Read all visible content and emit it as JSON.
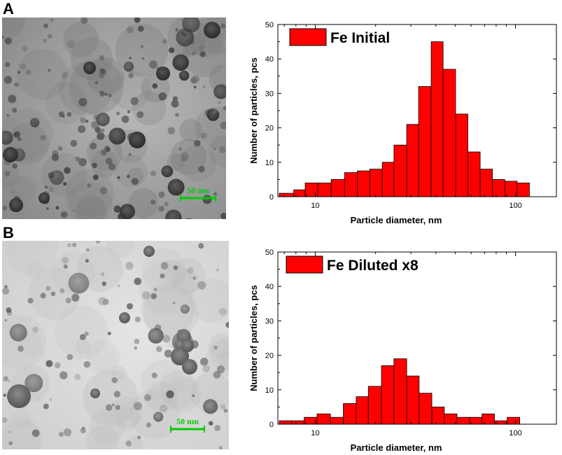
{
  "panels": [
    {
      "letter": "A",
      "scale_bar_text": "50 nm",
      "micrograph_style": "dark",
      "chart_data": {
        "type": "bar",
        "x_scale": "log",
        "xlim": [
          6.5,
          160
        ],
        "ylim": [
          0,
          50
        ],
        "yticks": [
          0,
          10,
          20,
          30,
          40,
          50
        ],
        "xticks": [
          10,
          100
        ],
        "xlabel": "Particle diameter, nm",
        "ylabel": "Number of particles, pcs",
        "bar_color": "#ff0000",
        "legend": "Fe Initial",
        "legend_position": "top-left",
        "bins": [
          {
            "left": 6.6,
            "right": 7.8,
            "value": 1
          },
          {
            "left": 7.8,
            "right": 8.9,
            "value": 2
          },
          {
            "left": 8.9,
            "right": 10.3,
            "value": 4
          },
          {
            "left": 10.3,
            "right": 12.0,
            "value": 4
          },
          {
            "left": 12.0,
            "right": 14.0,
            "value": 5
          },
          {
            "left": 14.0,
            "right": 16.2,
            "value": 7
          },
          {
            "left": 16.2,
            "right": 18.7,
            "value": 7.5
          },
          {
            "left": 18.7,
            "right": 21.6,
            "value": 8
          },
          {
            "left": 21.6,
            "right": 24.7,
            "value": 10
          },
          {
            "left": 24.7,
            "right": 28.6,
            "value": 15
          },
          {
            "left": 28.6,
            "right": 32.8,
            "value": 21
          },
          {
            "left": 32.8,
            "right": 37.9,
            "value": 32
          },
          {
            "left": 37.9,
            "right": 43.5,
            "value": 45
          },
          {
            "left": 43.5,
            "right": 50.2,
            "value": 37
          },
          {
            "left": 50.2,
            "right": 57.8,
            "value": 24
          },
          {
            "left": 57.8,
            "right": 66.6,
            "value": 13
          },
          {
            "left": 66.6,
            "right": 76.7,
            "value": 8
          },
          {
            "left": 76.7,
            "right": 88.4,
            "value": 5
          },
          {
            "left": 88.4,
            "right": 101.9,
            "value": 4.5
          },
          {
            "left": 101.9,
            "right": 117.3,
            "value": 4
          }
        ]
      }
    },
    {
      "letter": "B",
      "scale_bar_text": "50 nm",
      "micrograph_style": "light",
      "chart_data": {
        "type": "bar",
        "x_scale": "log",
        "xlim": [
          6.5,
          160
        ],
        "ylim": [
          0,
          50
        ],
        "yticks": [
          0,
          10,
          20,
          30,
          40,
          50
        ],
        "xticks": [
          10,
          100
        ],
        "xlabel": "Particle diameter, nm",
        "ylabel": "Number of particles, pcs",
        "bar_color": "#ff0000",
        "legend": "Fe Diluted x8",
        "legend_position": "top-left",
        "bins": [
          {
            "left": 6.6,
            "right": 7.6,
            "value": 1
          },
          {
            "left": 7.6,
            "right": 8.8,
            "value": 1
          },
          {
            "left": 8.8,
            "right": 10.2,
            "value": 2
          },
          {
            "left": 10.2,
            "right": 11.9,
            "value": 3
          },
          {
            "left": 11.9,
            "right": 13.8,
            "value": 2
          },
          {
            "left": 13.8,
            "right": 16.0,
            "value": 6
          },
          {
            "left": 16.0,
            "right": 18.4,
            "value": 8
          },
          {
            "left": 18.4,
            "right": 21.4,
            "value": 11
          },
          {
            "left": 21.4,
            "right": 24.7,
            "value": 17
          },
          {
            "left": 24.7,
            "right": 28.6,
            "value": 19
          },
          {
            "left": 28.6,
            "right": 33.0,
            "value": 14
          },
          {
            "left": 33.0,
            "right": 38.2,
            "value": 9
          },
          {
            "left": 38.2,
            "right": 44.1,
            "value": 5
          },
          {
            "left": 44.1,
            "right": 51.0,
            "value": 3
          },
          {
            "left": 51.0,
            "right": 59.0,
            "value": 2
          },
          {
            "left": 59.0,
            "right": 68.0,
            "value": 2
          },
          {
            "left": 68.0,
            "right": 78.5,
            "value": 3
          },
          {
            "left": 78.5,
            "right": 90.8,
            "value": 1
          },
          {
            "left": 90.8,
            "right": 104.9,
            "value": 2
          }
        ]
      }
    }
  ]
}
